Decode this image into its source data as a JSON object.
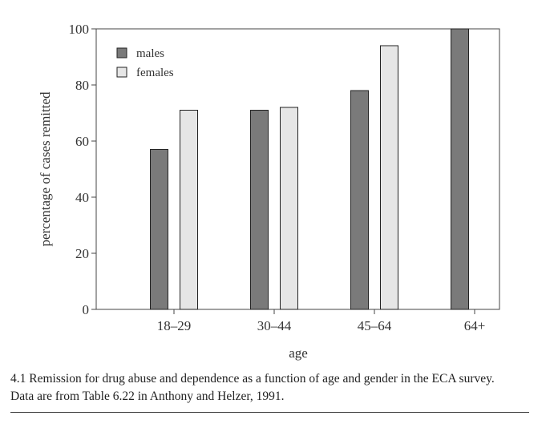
{
  "chart_data": {
    "type": "bar",
    "categories": [
      "18–29",
      "30–44",
      "45–64",
      "64+"
    ],
    "series": [
      {
        "name": "males",
        "values": [
          57,
          71,
          78,
          100
        ],
        "color": "#7a7a7a"
      },
      {
        "name": "females",
        "values": [
          71,
          72,
          94,
          null
        ],
        "color": "#e6e6e6"
      }
    ],
    "title": "",
    "xlabel": "age",
    "ylabel": "percentage of cases remitted",
    "ylim": [
      0,
      100
    ],
    "yticks": [
      0,
      20,
      40,
      60,
      80,
      100
    ],
    "grid": false,
    "legend_position": "top-left"
  },
  "caption": {
    "line1": "4.1 Remission for drug abuse and dependence as a function of age and gender in the ECA survey.",
    "line2": "Data are from Table 6.22 in Anthony and Helzer, 1991."
  }
}
